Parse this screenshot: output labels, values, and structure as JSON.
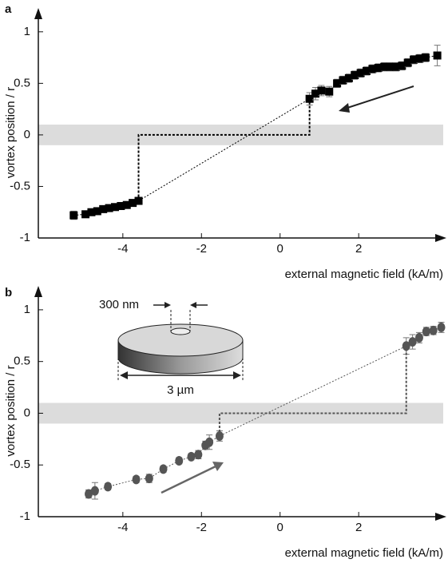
{
  "chart_data": [
    {
      "type": "scatter",
      "panel_label": "a",
      "y_label": "vortex position / r",
      "x_label": "external magnetic field (kA/m)",
      "xlim": [
        -6.15,
        4.15
      ],
      "ylim": [
        -1,
        1.2
      ],
      "xticks": [
        -4,
        -2,
        0,
        2
      ],
      "yticks": [
        -1,
        -0.5,
        0,
        0.5,
        1
      ],
      "band": [
        -0.1,
        0.1
      ],
      "band_color": "#dcdcdc",
      "marker": "square",
      "series": [
        {
          "color": "#000000",
          "x": [
            -5.25,
            -4.95,
            -4.8,
            -4.65,
            -4.5,
            -4.35,
            -4.2,
            -4.05,
            -3.9,
            -3.75,
            -3.6,
            0.75,
            0.9,
            1.05,
            1.25,
            1.45,
            1.6,
            1.75,
            1.9,
            2.05,
            2.2,
            2.35,
            2.5,
            2.65,
            2.8,
            2.95,
            3.1,
            3.25,
            3.4,
            3.55,
            3.7,
            4.0
          ],
          "values": [
            -0.78,
            -0.77,
            -0.75,
            -0.74,
            -0.72,
            -0.71,
            -0.7,
            -0.69,
            -0.68,
            -0.66,
            -0.64,
            0.35,
            0.4,
            0.43,
            0.42,
            0.5,
            0.53,
            0.55,
            0.58,
            0.6,
            0.62,
            0.64,
            0.65,
            0.66,
            0.66,
            0.66,
            0.67,
            0.7,
            0.73,
            0.74,
            0.75,
            0.77
          ],
          "errors": [
            0.04,
            0.03,
            0.03,
            0.03,
            0.03,
            0.03,
            0.03,
            0.03,
            0.03,
            0.03,
            0.03,
            0.06,
            0.06,
            0.05,
            0.05,
            0.04,
            0.04,
            0.04,
            0.04,
            0.04,
            0.04,
            0.04,
            0.04,
            0.04,
            0.04,
            0.04,
            0.04,
            0.04,
            0.04,
            0.04,
            0.04,
            0.1
          ]
        },
        {
          "color": "#000000",
          "style": "step",
          "x": [
            -3.6,
            -3.6,
            0.75,
            0.75
          ],
          "values": [
            -0.64,
            0,
            0,
            0.35
          ]
        }
      ]
    },
    {
      "type": "scatter",
      "panel_label": "b",
      "y_label": "vortex position / r",
      "x_label": "external magnetic field (kA/m)",
      "xlim": [
        -6.15,
        4.15
      ],
      "ylim": [
        -1,
        1.2
      ],
      "xticks": [
        -4,
        -2,
        0,
        2
      ],
      "yticks": [
        -1,
        -0.5,
        0,
        0.5,
        1
      ],
      "band": [
        -0.1,
        0.1
      ],
      "band_color": "#dcdcdc",
      "marker": "circle",
      "annotations": [
        "300 nm",
        "3 µm"
      ],
      "series": [
        {
          "color": "#555555",
          "x": [
            -4.87,
            -4.71,
            -4.38,
            -3.66,
            -3.33,
            -2.97,
            -2.57,
            -2.26,
            -2.08,
            -1.9,
            -1.8,
            -1.54,
            3.21,
            3.37,
            3.54,
            3.72,
            3.9,
            4.1
          ],
          "values": [
            -0.78,
            -0.75,
            -0.71,
            -0.64,
            -0.63,
            -0.54,
            -0.46,
            -0.42,
            -0.4,
            -0.31,
            -0.28,
            -0.22,
            0.65,
            0.69,
            0.73,
            0.79,
            0.8,
            0.83
          ],
          "errors": [
            0.04,
            0.08,
            0.03,
            0.03,
            0.04,
            0.03,
            0.03,
            0.03,
            0.04,
            0.04,
            0.07,
            0.05,
            0.08,
            0.07,
            0.05,
            0.04,
            0.04,
            0.05
          ]
        },
        {
          "color": "#555555",
          "style": "step",
          "x": [
            -1.54,
            -1.54,
            3.21,
            3.21
          ],
          "values": [
            -0.22,
            0,
            0,
            0.65
          ]
        }
      ]
    }
  ]
}
